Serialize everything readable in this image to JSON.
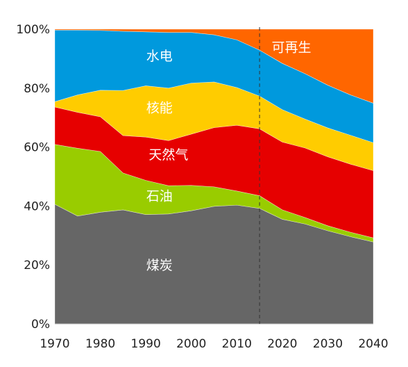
{
  "chart_data": {
    "type": "area",
    "stacked": true,
    "normalized": true,
    "title": "",
    "xlabel": "",
    "ylabel": "",
    "x": [
      1970,
      1975,
      1980,
      1985,
      1990,
      1995,
      2000,
      2005,
      2010,
      2015,
      2020,
      2025,
      2030,
      2035,
      2040
    ],
    "xlim": [
      1970,
      2040
    ],
    "ylim": [
      0,
      100
    ],
    "x_ticks": [
      1970,
      1980,
      1990,
      2000,
      2010,
      2020,
      2030,
      2040
    ],
    "y_ticks": [
      0,
      20,
      40,
      60,
      80,
      100
    ],
    "y_tick_labels": [
      "0%",
      "20%",
      "40%",
      "60%",
      "80%",
      "100%"
    ],
    "projection_start": 2015,
    "grid": false,
    "legend": "none",
    "series": [
      {
        "name": "煤炭",
        "color": "#666666",
        "label_text_color": "#ffffff",
        "values": [
          40.6,
          36.6,
          37.9,
          38.7,
          37.1,
          37.3,
          38.4,
          39.9,
          40.3,
          39.2,
          35.5,
          33.9,
          31.6,
          29.6,
          27.8
        ]
      },
      {
        "name": "石油",
        "color": "#99cc00",
        "label_text_color": "#ffffff",
        "values": [
          20.3,
          23.0,
          20.6,
          12.5,
          11.6,
          9.6,
          8.6,
          6.6,
          4.8,
          4.3,
          3.2,
          2.2,
          1.7,
          1.5,
          1.4
        ]
      },
      {
        "name": "天然气",
        "color": "#e60000",
        "label_text_color": "#ffffff",
        "values": [
          12.7,
          12.2,
          11.8,
          12.7,
          14.7,
          15.3,
          17.4,
          20.1,
          22.3,
          22.7,
          23.0,
          23.6,
          23.4,
          23.1,
          22.8
        ]
      },
      {
        "name": "核能",
        "color": "#ffcc00",
        "label_text_color": "#111111",
        "values": [
          1.8,
          5.9,
          9.0,
          15.3,
          17.4,
          17.8,
          17.3,
          15.5,
          12.8,
          11.1,
          11.0,
          9.8,
          9.8,
          9.8,
          9.5
        ]
      },
      {
        "name": "水电",
        "color": "#0099dd",
        "label_text_color": "#ffffff",
        "values": [
          24.3,
          22.0,
          20.3,
          20.1,
          18.3,
          18.9,
          17.2,
          16.0,
          16.2,
          15.6,
          15.7,
          15.4,
          14.5,
          13.7,
          13.4
        ]
      },
      {
        "name": "可再生",
        "color": "#ff6600",
        "label_text_color": "#ffffff",
        "values": [
          0.3,
          0.3,
          0.4,
          0.7,
          0.9,
          1.1,
          1.1,
          1.9,
          3.6,
          7.1,
          11.6,
          15.1,
          19.0,
          22.3,
          25.1
        ]
      }
    ],
    "area_labels": [
      {
        "series": "煤炭",
        "text": "煤炭",
        "x": 1993,
        "y": 20
      },
      {
        "series": "石油",
        "text": "石油",
        "x": 1993,
        "y": 43.5
      },
      {
        "series": "天然气",
        "text": "天然气",
        "x": 1995,
        "y": 57.5
      },
      {
        "series": "核能",
        "text": "核能",
        "x": 1993,
        "y": 73.5
      },
      {
        "series": "水电",
        "text": "水电",
        "x": 1993,
        "y": 91
      },
      {
        "series": "可再生",
        "text": "可再生",
        "x": 2022,
        "y": 94
      }
    ]
  }
}
